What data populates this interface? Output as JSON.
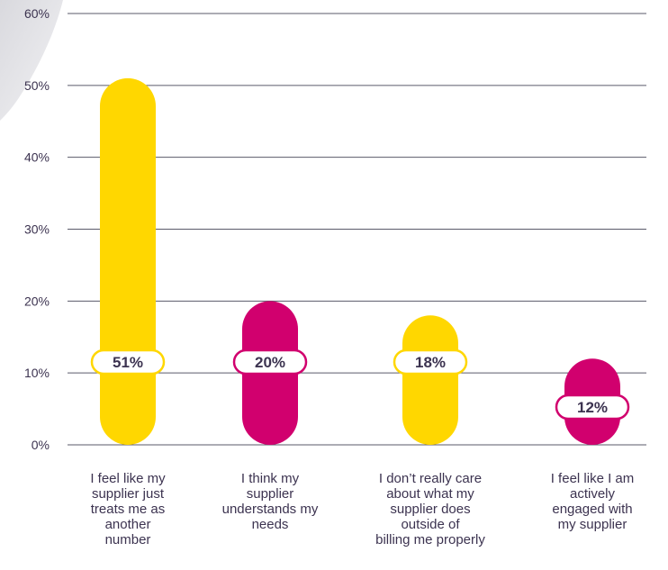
{
  "chart_data": {
    "type": "bar",
    "categories": [
      "I feel like my supplier just treats me as another number",
      "I think my supplier understands my needs",
      "I don’t really care about what my supplier does outside of billing me properly",
      "I feel like I am actively engaged with my supplier"
    ],
    "category_lines": [
      [
        "I feel like my",
        "supplier just",
        "treats me as",
        "another",
        "number"
      ],
      [
        "I think my",
        "supplier",
        "understands my",
        "needs"
      ],
      [
        "I don’t really care",
        "about what my",
        "supplier does",
        "outside of",
        "billing me properly"
      ],
      [
        "I feel like I am",
        "actively",
        "engaged with",
        "my supplier"
      ]
    ],
    "values": [
      51,
      20,
      18,
      12
    ],
    "value_labels": [
      "51%",
      "20%",
      "18%",
      "12%"
    ],
    "bar_colors": [
      "#FFD700",
      "#D1006E",
      "#FFD700",
      "#D1006E"
    ],
    "ylim": [
      0,
      60
    ],
    "yticks": [
      0,
      10,
      20,
      30,
      40,
      50,
      60
    ],
    "ytick_labels": [
      "0%",
      "10%",
      "20%",
      "30%",
      "40%",
      "50%",
      "60%"
    ],
    "grid": true,
    "title": "",
    "xlabel": "",
    "ylabel": ""
  },
  "colors": {
    "yellow": "#FFD700",
    "magenta": "#D1006E",
    "label_text": "#3c3350",
    "gridline": "#5a5a6a"
  }
}
